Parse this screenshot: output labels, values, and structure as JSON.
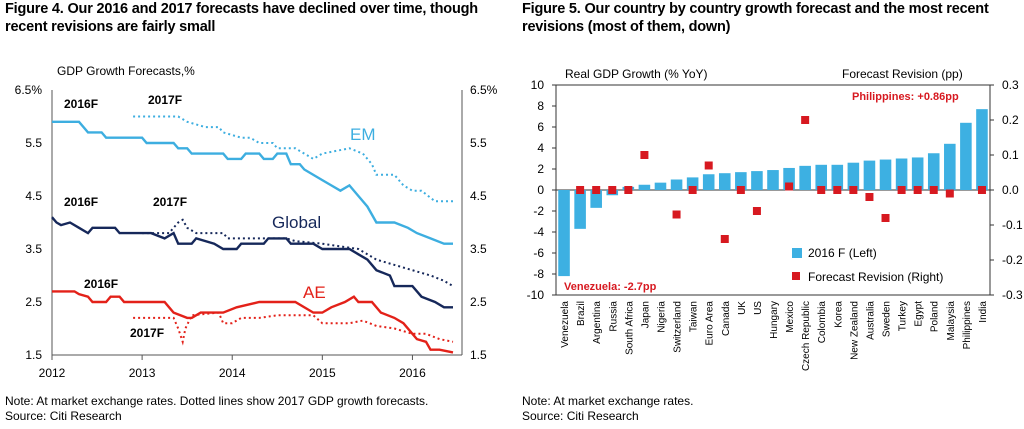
{
  "left": {
    "title_line1": "Figure 4. Our 2016 and 2017 forecasts have declined over time, though",
    "title_line2": "recent revisions are fairly small",
    "note": "Note: At market exchange rates. Dotted lines show 2017 GDP growth forecasts.",
    "source": "Source: Citi Research"
  },
  "right": {
    "title_line1": "Figure 5. Our country by country growth forecast and the most recent",
    "title_line2": "revisions (most of them, down)",
    "note": "Note: At market exchange rates.",
    "source": "Source: Citi Research"
  },
  "chart_data": [
    {
      "type": "line",
      "title": "GDP Growth Forecasts,%",
      "ylim": [
        1.5,
        6.5
      ],
      "xlim": [
        2012.0,
        2016.55
      ],
      "yticks": [
        "1.5",
        "2.5",
        "3.5",
        "4.5",
        "5.5",
        "6.5%"
      ],
      "xticks": [
        "2012",
        "2013",
        "2014",
        "2015",
        "2016"
      ],
      "annotations": {
        "label_2016": "2016F",
        "label_2017": "2017F"
      },
      "series": [
        {
          "name": "EM",
          "style": "solid",
          "color": "#3daee0",
          "points": [
            [
              2012.0,
              5.9
            ],
            [
              2012.3,
              5.9
            ],
            [
              2012.4,
              5.7
            ],
            [
              2012.55,
              5.7
            ],
            [
              2012.6,
              5.6
            ],
            [
              2013.0,
              5.6
            ],
            [
              2013.05,
              5.5
            ],
            [
              2013.35,
              5.5
            ],
            [
              2013.4,
              5.4
            ],
            [
              2013.5,
              5.4
            ],
            [
              2013.55,
              5.3
            ],
            [
              2013.9,
              5.3
            ],
            [
              2013.95,
              5.2
            ],
            [
              2014.1,
              5.2
            ],
            [
              2014.15,
              5.3
            ],
            [
              2014.3,
              5.3
            ],
            [
              2014.35,
              5.2
            ],
            [
              2014.45,
              5.2
            ],
            [
              2014.5,
              5.3
            ],
            [
              2014.6,
              5.3
            ],
            [
              2014.65,
              5.1
            ],
            [
              2014.75,
              5.1
            ],
            [
              2014.8,
              5.0
            ],
            [
              2015.0,
              4.8
            ],
            [
              2015.1,
              4.7
            ],
            [
              2015.2,
              4.6
            ],
            [
              2015.3,
              4.7
            ],
            [
              2015.4,
              4.5
            ],
            [
              2015.5,
              4.3
            ],
            [
              2015.6,
              4.0
            ],
            [
              2015.75,
              4.0
            ],
            [
              2015.8,
              4.0
            ],
            [
              2015.95,
              3.9
            ],
            [
              2016.05,
              3.8
            ],
            [
              2016.2,
              3.7
            ],
            [
              2016.35,
              3.6
            ],
            [
              2016.45,
              3.6
            ]
          ]
        },
        {
          "name": "EM",
          "style": "dotted",
          "color": "#3daee0",
          "points": [
            [
              2012.9,
              6.0
            ],
            [
              2013.4,
              6.0
            ],
            [
              2013.5,
              5.9
            ],
            [
              2013.7,
              5.8
            ],
            [
              2013.85,
              5.8
            ],
            [
              2013.9,
              5.7
            ],
            [
              2014.1,
              5.6
            ],
            [
              2014.2,
              5.6
            ],
            [
              2014.3,
              5.5
            ],
            [
              2014.45,
              5.5
            ],
            [
              2014.5,
              5.4
            ],
            [
              2014.7,
              5.4
            ],
            [
              2014.8,
              5.3
            ],
            [
              2014.9,
              5.2
            ],
            [
              2015.0,
              5.3
            ],
            [
              2015.3,
              5.4
            ],
            [
              2015.45,
              5.3
            ],
            [
              2015.55,
              5.1
            ],
            [
              2015.6,
              4.9
            ],
            [
              2015.75,
              4.9
            ],
            [
              2015.8,
              4.9
            ],
            [
              2015.9,
              4.7
            ],
            [
              2016.0,
              4.6
            ],
            [
              2016.1,
              4.6
            ],
            [
              2016.25,
              4.4
            ],
            [
              2016.45,
              4.4
            ]
          ]
        },
        {
          "name": "Global",
          "style": "solid",
          "color": "#16285a",
          "points": [
            [
              2012.0,
              4.1
            ],
            [
              2012.05,
              4.0
            ],
            [
              2012.1,
              3.95
            ],
            [
              2012.2,
              4.0
            ],
            [
              2012.3,
              3.9
            ],
            [
              2012.4,
              3.8
            ],
            [
              2012.45,
              3.9
            ],
            [
              2012.7,
              3.9
            ],
            [
              2012.75,
              3.8
            ],
            [
              2013.0,
              3.8
            ],
            [
              2013.1,
              3.8
            ],
            [
              2013.25,
              3.7
            ],
            [
              2013.35,
              3.8
            ],
            [
              2013.4,
              3.6
            ],
            [
              2013.55,
              3.6
            ],
            [
              2013.6,
              3.7
            ],
            [
              2013.8,
              3.6
            ],
            [
              2013.9,
              3.5
            ],
            [
              2014.05,
              3.5
            ],
            [
              2014.1,
              3.6
            ],
            [
              2014.35,
              3.6
            ],
            [
              2014.4,
              3.7
            ],
            [
              2014.6,
              3.7
            ],
            [
              2014.65,
              3.6
            ],
            [
              2014.9,
              3.6
            ],
            [
              2015.0,
              3.5
            ],
            [
              2015.3,
              3.5
            ],
            [
              2015.4,
              3.4
            ],
            [
              2015.5,
              3.3
            ],
            [
              2015.6,
              3.1
            ],
            [
              2015.75,
              3.0
            ],
            [
              2015.8,
              2.8
            ],
            [
              2016.0,
              2.8
            ],
            [
              2016.1,
              2.6
            ],
            [
              2016.25,
              2.5
            ],
            [
              2016.35,
              2.4
            ],
            [
              2016.45,
              2.4
            ]
          ]
        },
        {
          "name": "Global",
          "style": "dotted",
          "color": "#16285a",
          "points": [
            [
              2013.0,
              3.8
            ],
            [
              2013.3,
              3.8
            ],
            [
              2013.35,
              3.9
            ],
            [
              2013.4,
              4.0
            ],
            [
              2013.45,
              4.05
            ],
            [
              2013.5,
              3.9
            ],
            [
              2013.6,
              3.8
            ],
            [
              2013.9,
              3.8
            ],
            [
              2013.95,
              3.7
            ],
            [
              2014.1,
              3.7
            ],
            [
              2014.2,
              3.7
            ],
            [
              2014.3,
              3.7
            ],
            [
              2014.4,
              3.7
            ],
            [
              2014.6,
              3.7
            ],
            [
              2014.7,
              3.65
            ],
            [
              2015.0,
              3.6
            ],
            [
              2015.2,
              3.55
            ],
            [
              2015.4,
              3.5
            ],
            [
              2015.6,
              3.3
            ],
            [
              2015.8,
              3.2
            ],
            [
              2016.0,
              3.1
            ],
            [
              2016.2,
              3.0
            ],
            [
              2016.35,
              2.9
            ],
            [
              2016.45,
              2.8
            ]
          ]
        },
        {
          "name": "AE",
          "style": "solid",
          "color": "#e32119",
          "points": [
            [
              2012.0,
              2.7
            ],
            [
              2012.25,
              2.7
            ],
            [
              2012.3,
              2.65
            ],
            [
              2012.4,
              2.6
            ],
            [
              2012.45,
              2.5
            ],
            [
              2012.6,
              2.5
            ],
            [
              2012.65,
              2.6
            ],
            [
              2012.75,
              2.6
            ],
            [
              2012.8,
              2.5
            ],
            [
              2013.0,
              2.5
            ],
            [
              2013.1,
              2.5
            ],
            [
              2013.25,
              2.5
            ],
            [
              2013.3,
              2.4
            ],
            [
              2013.35,
              2.3
            ],
            [
              2013.5,
              2.2
            ],
            [
              2013.55,
              2.2
            ],
            [
              2013.65,
              2.3
            ],
            [
              2013.8,
              2.3
            ],
            [
              2013.9,
              2.3
            ],
            [
              2014.05,
              2.4
            ],
            [
              2014.3,
              2.5
            ],
            [
              2014.55,
              2.5
            ],
            [
              2014.6,
              2.5
            ],
            [
              2014.7,
              2.5
            ],
            [
              2014.9,
              2.3
            ],
            [
              2015.0,
              2.3
            ],
            [
              2015.1,
              2.4
            ],
            [
              2015.25,
              2.5
            ],
            [
              2015.35,
              2.6
            ],
            [
              2015.4,
              2.5
            ],
            [
              2015.55,
              2.5
            ],
            [
              2015.65,
              2.3
            ],
            [
              2015.8,
              2.2
            ],
            [
              2015.9,
              2.1
            ],
            [
              2016.0,
              1.9
            ],
            [
              2016.05,
              1.8
            ],
            [
              2016.15,
              1.75
            ],
            [
              2016.2,
              1.6
            ],
            [
              2016.3,
              1.6
            ],
            [
              2016.45,
              1.55
            ]
          ]
        },
        {
          "name": "AE",
          "style": "dotted",
          "color": "#e32119",
          "points": [
            [
              2012.9,
              2.2
            ],
            [
              2013.35,
              2.2
            ],
            [
              2013.4,
              2.0
            ],
            [
              2013.45,
              1.75
            ],
            [
              2013.48,
              2.0
            ],
            [
              2013.55,
              2.25
            ],
            [
              2013.85,
              2.3
            ],
            [
              2013.9,
              2.1
            ],
            [
              2014.0,
              2.1
            ],
            [
              2014.1,
              2.2
            ],
            [
              2014.3,
              2.2
            ],
            [
              2014.5,
              2.25
            ],
            [
              2014.9,
              2.25
            ],
            [
              2015.0,
              2.1
            ],
            [
              2015.3,
              2.1
            ],
            [
              2015.45,
              2.15
            ],
            [
              2015.6,
              2.05
            ],
            [
              2015.8,
              2.0
            ],
            [
              2016.0,
              1.9
            ],
            [
              2016.15,
              1.9
            ],
            [
              2016.3,
              1.8
            ],
            [
              2016.45,
              1.75
            ]
          ]
        }
      ]
    },
    {
      "type": "bar",
      "title": "Real GDP Growth (% YoY)",
      "right_axis_title": "Forecast Revision (pp)",
      "ylim": [
        -10,
        10
      ],
      "ylim_right": [
        -0.3,
        0.3
      ],
      "yticks": [
        "-10",
        "-8",
        "-6",
        "-4",
        "-2",
        "0",
        "2",
        "4",
        "6",
        "8",
        "10"
      ],
      "yticks_right": [
        "-0.3",
        "-0.2",
        "-0.1",
        "0.0",
        "0.1",
        "0.2",
        "0.3"
      ],
      "legend": [
        "2016 F (Left)",
        "Forecast Revision (Right)"
      ],
      "legend_position": "bottom-right",
      "annotations": [
        "Philippines: +0.86pp",
        "Venezuela: -2.7pp"
      ],
      "colors": {
        "bars": "#3db0e2",
        "revision": "#d71920",
        "annotation": "#d71920"
      },
      "categories": [
        "Venezuela",
        "Brazil",
        "Argentina",
        "Russia",
        "South Africa",
        "Japan",
        "Nigeria",
        "Switzerland",
        "Taiwan",
        "Euro Area",
        "Canada",
        "UK",
        "US",
        "Hungary",
        "Mexico",
        "Czech Republic",
        "Colombia",
        "Korea",
        "New Zealand",
        "Australia",
        "Sweden",
        "Turkey",
        "Egypt",
        "Poland",
        "Malaysia",
        "Philippines",
        "India"
      ],
      "series": [
        {
          "name": "2016 F (Left)",
          "values": [
            -8.2,
            -3.7,
            -1.7,
            -0.5,
            0.3,
            0.5,
            0.7,
            1.0,
            1.2,
            1.5,
            1.6,
            1.7,
            1.8,
            1.9,
            2.1,
            2.3,
            2.4,
            2.4,
            2.6,
            2.8,
            2.9,
            3.0,
            3.1,
            3.5,
            4.4,
            6.4,
            7.7
          ]
        },
        {
          "name": "Forecast Revision (Right)",
          "values": [
            null,
            0.0,
            0.0,
            0.0,
            0.0,
            0.1,
            null,
            -0.07,
            0.0,
            0.07,
            -0.14,
            0.0,
            -0.06,
            null,
            0.01,
            0.2,
            0.0,
            0.0,
            0.0,
            -0.02,
            -0.08,
            0.0,
            0.0,
            0.0,
            -0.01,
            null,
            0.0
          ]
        }
      ]
    }
  ]
}
